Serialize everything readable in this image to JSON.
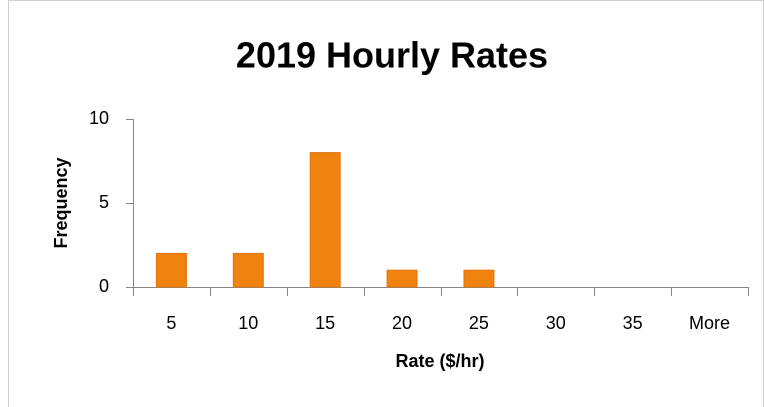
{
  "chart_data": {
    "type": "bar",
    "title": "2019 Hourly Rates",
    "x_label": "Rate ($/hr)",
    "y_label": "Frequency",
    "categories": [
      "5",
      "10",
      "15",
      "20",
      "25",
      "30",
      "35",
      "More"
    ],
    "values": [
      2,
      2,
      8,
      1,
      1,
      0,
      0,
      0
    ],
    "color": "#f0820f",
    "ylim": [
      0,
      10
    ],
    "yticks": [
      0,
      5,
      10
    ],
    "grid": false
  }
}
